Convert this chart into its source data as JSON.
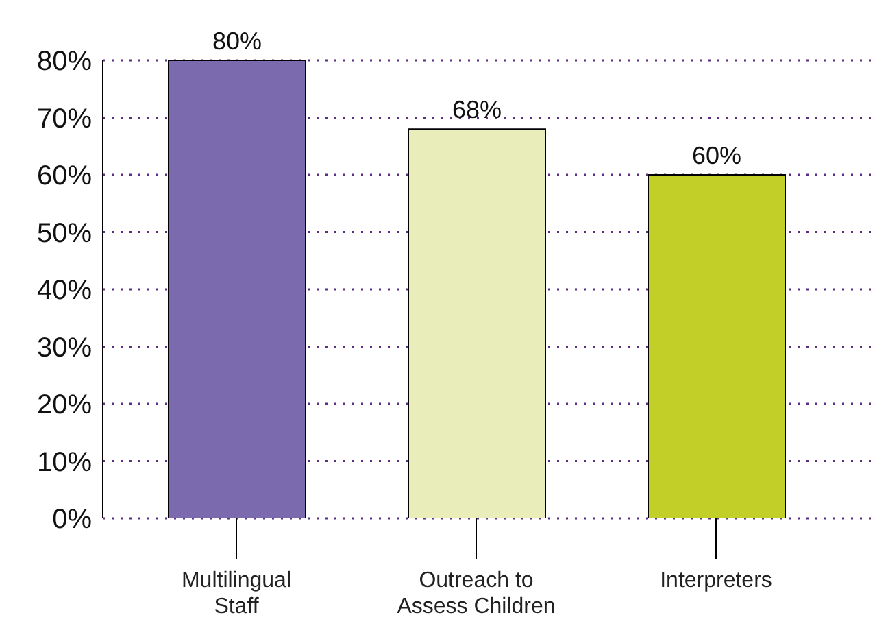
{
  "chart_data": {
    "type": "bar",
    "categories": [
      "Multilingual Staff",
      "Outreach to Assess Children",
      "Interpreters"
    ],
    "values": [
      80,
      68,
      60
    ],
    "colors": [
      "#7b6aad",
      "#e9edb9",
      "#c2cf28"
    ],
    "value_labels": [
      "80%",
      "68%",
      "60%"
    ],
    "ylim": [
      0,
      80
    ],
    "yticks": [
      {
        "value": 0,
        "label": "0%"
      },
      {
        "value": 10,
        "label": "10%"
      },
      {
        "value": 20,
        "label": "20%"
      },
      {
        "value": 30,
        "label": "30%"
      },
      {
        "value": 40,
        "label": "40%"
      },
      {
        "value": 50,
        "label": "50%"
      },
      {
        "value": 60,
        "label": "60%"
      },
      {
        "value": 70,
        "label": "70%"
      },
      {
        "value": 80,
        "label": "80%"
      }
    ],
    "grid": "y",
    "legend": false
  }
}
